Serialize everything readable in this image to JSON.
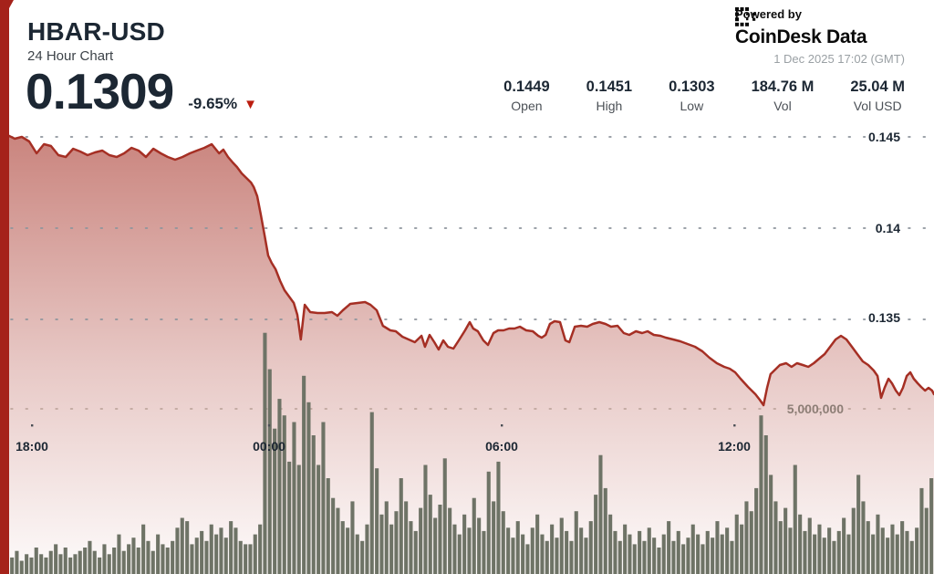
{
  "header": {
    "symbol": "HBAR-USD",
    "subtitle": "24 Hour Chart",
    "price": "0.1309",
    "change_pct": "-9.65%",
    "direction_glyph": "▼"
  },
  "powered_by": {
    "label": "Powered by",
    "brand": "CoinDesk Data",
    "timestamp": "1 Dec 2025 17:02 (GMT)"
  },
  "stats": [
    {
      "value": "0.1449",
      "label": "Open"
    },
    {
      "value": "0.1451",
      "label": "High"
    },
    {
      "value": "0.1303",
      "label": "Low"
    },
    {
      "value": "184.76 M",
      "label": "Vol"
    },
    {
      "value": "25.04 M",
      "label": "Vol USD"
    }
  ],
  "colors": {
    "accent_red": "#a5221a",
    "line_red": "#a52f24",
    "area_red": "#a52f24",
    "volume_bar": "#6e7366",
    "grid_dot": "#8e959d",
    "volume_grid_dot": "#bfa79d",
    "text_dark": "#1c2733",
    "volume_label": "#8d7e76",
    "timestamp_gray": "#9aa0a4"
  },
  "chart_data": {
    "type": "area",
    "title": "HBAR-USD 24 Hour Chart",
    "xlabel": "",
    "ylabel": "",
    "x_axis": {
      "tick_labels": [
        "18:00",
        "00:00",
        "06:00",
        "12:00"
      ],
      "tick_hours": [
        0.82,
        6.91,
        12.89,
        18.87
      ],
      "span_hours": 24,
      "start": "17:10 (GMT) previous day",
      "end": "17:02 (GMT)"
    },
    "y_axis": {
      "tick_labels": [
        "0.145",
        "0.14",
        "0.135"
      ],
      "tick_values": [
        0.145,
        0.14,
        0.135
      ],
      "ylim": [
        0.1296,
        0.1459
      ],
      "grid": "dotted"
    },
    "volume_axis": {
      "tick_label": "5,000,000",
      "tick_value": 5000000,
      "unit": "HBAR"
    },
    "series": [
      {
        "name": "HBAR-USD price",
        "open": 0.1449,
        "high": 0.1451,
        "low": 0.1303,
        "close": 0.1309,
        "points_hours_price": [
          [
            0,
            0.14535
          ],
          [
            0.19,
            0.1451
          ],
          [
            0.38,
            0.1449
          ],
          [
            0.56,
            0.145
          ],
          [
            0.75,
            0.14475
          ],
          [
            0.94,
            0.1441
          ],
          [
            1.13,
            0.1446
          ],
          [
            1.31,
            0.1445
          ],
          [
            1.5,
            0.144
          ],
          [
            1.69,
            0.1439
          ],
          [
            1.88,
            0.14435
          ],
          [
            2.06,
            0.1442
          ],
          [
            2.25,
            0.144
          ],
          [
            2.44,
            0.14415
          ],
          [
            2.63,
            0.14425
          ],
          [
            2.81,
            0.144
          ],
          [
            3,
            0.1439
          ],
          [
            3.19,
            0.1441
          ],
          [
            3.38,
            0.1444
          ],
          [
            3.56,
            0.14425
          ],
          [
            3.75,
            0.1439
          ],
          [
            3.94,
            0.14435
          ],
          [
            4.13,
            0.1441
          ],
          [
            4.31,
            0.1439
          ],
          [
            4.5,
            0.14375
          ],
          [
            4.69,
            0.1439
          ],
          [
            4.88,
            0.1441
          ],
          [
            5.06,
            0.14425
          ],
          [
            5.25,
            0.1444
          ],
          [
            5.44,
            0.1446
          ],
          [
            5.63,
            0.1441
          ],
          [
            5.74,
            0.1443
          ],
          [
            5.86,
            0.1439
          ],
          [
            5.98,
            0.1436
          ],
          [
            6.09,
            0.14335
          ],
          [
            6.21,
            0.143
          ],
          [
            6.33,
            0.14275
          ],
          [
            6.45,
            0.1425
          ],
          [
            6.52,
            0.14225
          ],
          [
            6.61,
            0.14175
          ],
          [
            6.7,
            0.14075
          ],
          [
            6.8,
            0.1396
          ],
          [
            6.89,
            0.1385
          ],
          [
            6.98,
            0.1381
          ],
          [
            7.08,
            0.13775
          ],
          [
            7.2,
            0.1371
          ],
          [
            7.31,
            0.1366
          ],
          [
            7.43,
            0.13625
          ],
          [
            7.55,
            0.1359
          ],
          [
            7.64,
            0.13525
          ],
          [
            7.73,
            0.1339
          ],
          [
            7.83,
            0.1358
          ],
          [
            7.97,
            0.1354
          ],
          [
            8.16,
            0.13535
          ],
          [
            8.34,
            0.13535
          ],
          [
            8.53,
            0.1354
          ],
          [
            8.67,
            0.1352
          ],
          [
            8.81,
            0.1355
          ],
          [
            9,
            0.13585
          ],
          [
            9.19,
            0.1359
          ],
          [
            9.38,
            0.13595
          ],
          [
            9.52,
            0.1358
          ],
          [
            9.68,
            0.1355
          ],
          [
            9.84,
            0.13465
          ],
          [
            10.03,
            0.1344
          ],
          [
            10.17,
            0.13435
          ],
          [
            10.34,
            0.13405
          ],
          [
            10.5,
            0.1339
          ],
          [
            10.66,
            0.13375
          ],
          [
            10.83,
            0.1341
          ],
          [
            10.92,
            0.1335
          ],
          [
            11.04,
            0.13415
          ],
          [
            11.16,
            0.13375
          ],
          [
            11.27,
            0.13335
          ],
          [
            11.39,
            0.13385
          ],
          [
            11.51,
            0.1335
          ],
          [
            11.65,
            0.1334
          ],
          [
            11.79,
            0.13385
          ],
          [
            11.95,
            0.1344
          ],
          [
            12.07,
            0.13485
          ],
          [
            12.16,
            0.1345
          ],
          [
            12.28,
            0.13435
          ],
          [
            12.42,
            0.13385
          ],
          [
            12.54,
            0.1336
          ],
          [
            12.68,
            0.13425
          ],
          [
            12.8,
            0.1344
          ],
          [
            12.94,
            0.1344
          ],
          [
            13.08,
            0.1345
          ],
          [
            13.22,
            0.1345
          ],
          [
            13.36,
            0.1346
          ],
          [
            13.52,
            0.1344
          ],
          [
            13.69,
            0.13435
          ],
          [
            13.83,
            0.1341
          ],
          [
            13.92,
            0.134
          ],
          [
            14.02,
            0.13415
          ],
          [
            14.13,
            0.13475
          ],
          [
            14.25,
            0.1349
          ],
          [
            14.39,
            0.13485
          ],
          [
            14.53,
            0.13385
          ],
          [
            14.63,
            0.13375
          ],
          [
            14.77,
            0.1346
          ],
          [
            14.93,
            0.13465
          ],
          [
            15.09,
            0.1346
          ],
          [
            15.23,
            0.13475
          ],
          [
            15.4,
            0.13485
          ],
          [
            15.56,
            0.13475
          ],
          [
            15.7,
            0.1346
          ],
          [
            15.87,
            0.13465
          ],
          [
            16.03,
            0.13425
          ],
          [
            16.17,
            0.13415
          ],
          [
            16.34,
            0.13435
          ],
          [
            16.5,
            0.13425
          ],
          [
            16.64,
            0.13435
          ],
          [
            16.8,
            0.13415
          ],
          [
            16.97,
            0.1341
          ],
          [
            17.11,
            0.134
          ],
          [
            17.3,
            0.1339
          ],
          [
            17.48,
            0.1338
          ],
          [
            17.67,
            0.13365
          ],
          [
            17.86,
            0.1335
          ],
          [
            18.05,
            0.13325
          ],
          [
            18.23,
            0.1329
          ],
          [
            18.42,
            0.1326
          ],
          [
            18.61,
            0.1324
          ],
          [
            18.75,
            0.1323
          ],
          [
            18.89,
            0.1321
          ],
          [
            19.03,
            0.13175
          ],
          [
            19.22,
            0.1313
          ],
          [
            19.41,
            0.1309
          ],
          [
            19.52,
            0.1306
          ],
          [
            19.62,
            0.1303
          ],
          [
            19.71,
            0.13125
          ],
          [
            19.8,
            0.132
          ],
          [
            19.92,
            0.13225
          ],
          [
            20.04,
            0.1325
          ],
          [
            20.2,
            0.1326
          ],
          [
            20.34,
            0.1324
          ],
          [
            20.48,
            0.1326
          ],
          [
            20.63,
            0.1325
          ],
          [
            20.77,
            0.1324
          ],
          [
            20.91,
            0.1326
          ],
          [
            21.05,
            0.13285
          ],
          [
            21.19,
            0.1331
          ],
          [
            21.33,
            0.1335
          ],
          [
            21.47,
            0.1339
          ],
          [
            21.61,
            0.1341
          ],
          [
            21.75,
            0.1339
          ],
          [
            21.89,
            0.1335
          ],
          [
            22.03,
            0.1331
          ],
          [
            22.17,
            0.1327
          ],
          [
            22.31,
            0.1325
          ],
          [
            22.45,
            0.1322
          ],
          [
            22.55,
            0.1319
          ],
          [
            22.64,
            0.1307
          ],
          [
            22.73,
            0.13125
          ],
          [
            22.83,
            0.13175
          ],
          [
            22.92,
            0.1315
          ],
          [
            23.02,
            0.1311
          ],
          [
            23.11,
            0.13085
          ],
          [
            23.2,
            0.13125
          ],
          [
            23.3,
            0.1319
          ],
          [
            23.39,
            0.1321
          ],
          [
            23.48,
            0.13175
          ],
          [
            23.58,
            0.1315
          ],
          [
            23.67,
            0.1313
          ],
          [
            23.77,
            0.1311
          ],
          [
            23.86,
            0.13125
          ],
          [
            23.95,
            0.1311
          ],
          [
            24,
            0.1309
          ]
        ]
      }
    ],
    "volume_bars_millions": [
      0.9,
      0.4,
      0.5,
      0.7,
      0.4,
      0.6,
      0.5,
      0.8,
      0.6,
      0.5,
      0.7,
      0.9,
      0.6,
      0.8,
      0.5,
      0.6,
      0.7,
      0.8,
      1.0,
      0.7,
      0.5,
      0.9,
      0.6,
      0.8,
      1.2,
      0.7,
      0.9,
      1.1,
      0.8,
      1.5,
      1.0,
      0.7,
      1.2,
      0.9,
      0.8,
      1.0,
      1.4,
      1.7,
      1.6,
      0.9,
      1.1,
      1.3,
      1.0,
      1.5,
      1.2,
      1.4,
      1.1,
      1.6,
      1.4,
      1.0,
      0.9,
      0.9,
      1.2,
      1.5,
      7.3,
      6.2,
      4.4,
      5.3,
      4.8,
      3.4,
      4.6,
      3.3,
      6.0,
      5.2,
      4.2,
      3.3,
      4.6,
      2.9,
      2.3,
      2.0,
      1.6,
      1.4,
      2.2,
      1.2,
      1.0,
      1.5,
      4.9,
      3.2,
      1.8,
      2.2,
      1.5,
      1.9,
      2.9,
      2.2,
      1.6,
      1.3,
      2.0,
      3.3,
      2.4,
      1.7,
      2.1,
      3.5,
      2.0,
      1.5,
      1.2,
      1.8,
      1.4,
      2.3,
      1.7,
      1.3,
      3.1,
      2.2,
      3.4,
      1.9,
      1.4,
      1.1,
      1.6,
      1.2,
      0.9,
      1.4,
      1.8,
      1.2,
      1.0,
      1.5,
      1.1,
      1.7,
      1.3,
      1.0,
      1.9,
      1.4,
      1.1,
      1.6,
      2.4,
      3.6,
      2.6,
      1.8,
      1.3,
      1.0,
      1.5,
      1.2,
      0.9,
      1.3,
      1.0,
      1.4,
      1.1,
      0.8,
      1.2,
      1.6,
      1.0,
      1.3,
      0.9,
      1.1,
      1.5,
      1.2,
      0.9,
      1.3,
      1.1,
      1.6,
      1.2,
      1.4,
      1.0,
      1.8,
      1.5,
      2.2,
      1.9,
      2.6,
      4.8,
      4.2,
      3.0,
      2.2,
      1.6,
      2.0,
      1.4,
      3.3,
      1.8,
      1.3,
      1.7,
      1.2,
      1.5,
      1.1,
      1.4,
      1.0,
      1.3,
      1.7,
      1.2,
      2.0,
      3.0,
      2.2,
      1.6,
      1.2,
      1.8,
      1.4,
      1.1,
      1.5,
      1.2,
      1.6,
      1.3,
      1.0,
      1.4,
      2.6,
      2.0,
      2.9
    ],
    "legend": "none"
  }
}
